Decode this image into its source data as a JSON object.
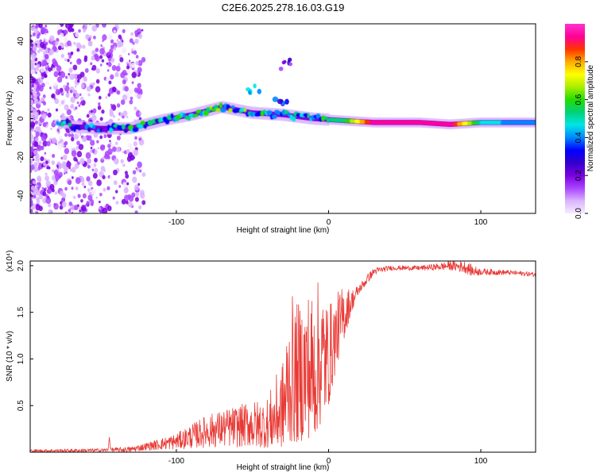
{
  "title": "C2E6.2025.278.16.03.G19",
  "colors": {
    "snr_line": "#e83a35",
    "colorbar": [
      "#f6ecff",
      "#d9b3ff",
      "#aa44ff",
      "#7a00e0",
      "#3300cc",
      "#0000ff",
      "#0088ff",
      "#00e5e5",
      "#00d27a",
      "#22dd00",
      "#aaee00",
      "#ffff00",
      "#ffaa00",
      "#ff3300",
      "#ff0099",
      "#ff33cc"
    ]
  },
  "chart_data": [
    {
      "type": "heatmap",
      "xlabel": "Height of straight line (km)",
      "ylabel": "Frequency (Hz)",
      "xlim": [
        -196,
        136
      ],
      "ylim": [
        -49,
        49
      ],
      "xticks": [
        -100,
        0,
        100
      ],
      "yticks": [
        -40,
        -20,
        0,
        20,
        40
      ],
      "colorbar": {
        "label": "Normalized spectral amplitude",
        "range": [
          0,
          1
        ],
        "ticks": [
          0.0,
          0.2,
          0.4,
          0.6,
          0.8
        ]
      },
      "ridge": [
        {
          "x": -170,
          "y": -4,
          "amp": 0.35
        },
        {
          "x": -150,
          "y": -5,
          "amp": 0.35
        },
        {
          "x": -130,
          "y": -5,
          "amp": 0.45
        },
        {
          "x": -110,
          "y": -1,
          "amp": 0.45
        },
        {
          "x": -90,
          "y": 2,
          "amp": 0.5
        },
        {
          "x": -70,
          "y": 6,
          "amp": 0.5
        },
        {
          "x": -50,
          "y": 3,
          "amp": 0.45
        },
        {
          "x": -30,
          "y": 2,
          "amp": 0.4
        },
        {
          "x": -10,
          "y": 0,
          "amp": 0.5
        },
        {
          "x": 10,
          "y": -1,
          "amp": 0.55
        },
        {
          "x": 30,
          "y": -2,
          "amp": 0.95
        },
        {
          "x": 60,
          "y": -2,
          "amp": 0.9
        },
        {
          "x": 80,
          "y": -3,
          "amp": 0.95
        },
        {
          "x": 100,
          "y": -2,
          "amp": 0.5
        },
        {
          "x": 120,
          "y": -2,
          "amp": 0.4
        },
        {
          "x": 136,
          "y": -2,
          "amp": 0.4
        }
      ],
      "branches": [
        {
          "x": -30,
          "y": 28,
          "amp": 0.1
        },
        {
          "x": -50,
          "y": 15,
          "amp": 0.35
        },
        {
          "x": -30,
          "y": 10,
          "amp": 0.2
        }
      ]
    },
    {
      "type": "line",
      "xlabel": "Height of straight line (km)",
      "ylabel": "SNR (10 * v/v)",
      "y_multiplier": "(x10⁴)",
      "xlim": [
        -196,
        136
      ],
      "ylim": [
        0,
        2.05
      ],
      "xticks": [
        -100,
        0,
        100
      ],
      "yticks": [
        0.5,
        1.0,
        1.5,
        2.0
      ],
      "envelope": {
        "x": [
          -196,
          -150,
          -130,
          -120,
          -100,
          -80,
          -60,
          -40,
          -30,
          -25,
          -20,
          -15,
          -10,
          -5,
          0,
          5,
          10,
          15,
          20,
          25,
          30,
          40,
          50,
          60,
          70,
          80,
          90,
          95,
          100,
          110,
          120,
          136
        ],
        "min": [
          0.0,
          0.0,
          0.0,
          0.02,
          0.03,
          0.05,
          0.05,
          0.05,
          0.05,
          0.1,
          0.1,
          0.15,
          0.15,
          0.3,
          0.5,
          0.9,
          1.2,
          1.5,
          1.7,
          1.8,
          1.9,
          1.95,
          1.95,
          1.95,
          1.95,
          1.95,
          1.92,
          1.88,
          1.9,
          1.9,
          1.9,
          1.88
        ],
        "max": [
          0.03,
          0.04,
          0.06,
          0.1,
          0.2,
          0.4,
          0.5,
          0.6,
          1.0,
          1.7,
          1.6,
          1.8,
          1.75,
          1.9,
          1.6,
          1.7,
          1.8,
          1.75,
          1.8,
          1.9,
          1.98,
          2.0,
          2.0,
          2.0,
          2.02,
          2.05,
          2.05,
          2.0,
          1.97,
          1.96,
          1.95,
          1.93
        ]
      },
      "spikes": [
        {
          "x": -144,
          "y": 0.16
        }
      ]
    }
  ]
}
